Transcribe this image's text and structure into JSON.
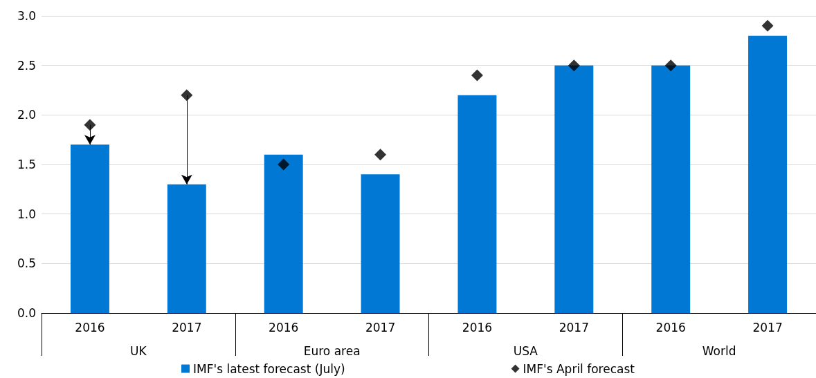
{
  "chart_data": {
    "type": "bar",
    "categories": [
      "2016",
      "2017",
      "2016",
      "2017",
      "2016",
      "2017",
      "2016",
      "2017"
    ],
    "series": [
      {
        "name": "IMF's latest forecast (July)",
        "color": "#0078d4",
        "values": [
          1.7,
          1.3,
          1.6,
          1.4,
          2.2,
          2.5,
          2.5,
          2.8
        ]
      },
      {
        "name": "IMF's April forecast",
        "type": "scatter",
        "color": "#000000",
        "values": [
          1.9,
          2.2,
          1.5,
          1.6,
          2.4,
          2.5,
          2.5,
          2.9
        ]
      }
    ],
    "annotations": [
      "UK",
      "Euro area",
      "USA",
      "World"
    ],
    "ylim": [
      0,
      3
    ],
    "yticks": [
      {
        "value": 0,
        "label": "0.0"
      },
      0.5,
      {
        "value": 1,
        "label": "1.0"
      },
      1.5,
      {
        "value": 2,
        "label": "2.0"
      },
      2.5,
      {
        "value": 3,
        "label": "3.0"
      }
    ],
    "grid": "y",
    "legend": "bottom",
    "marker": "diamond"
  }
}
